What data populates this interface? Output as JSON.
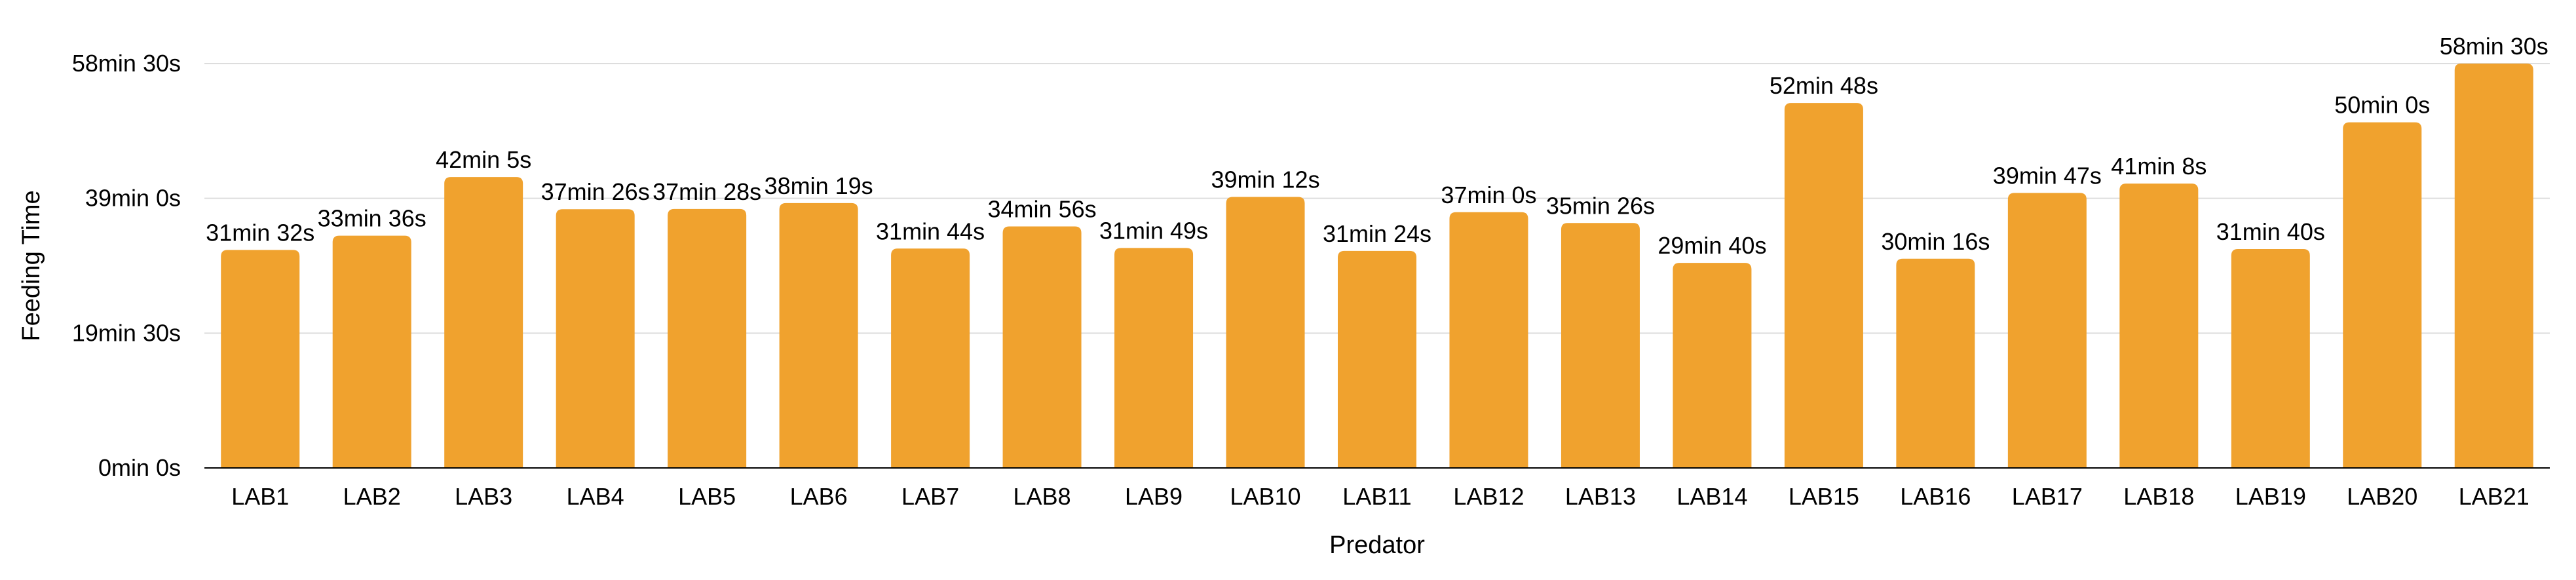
{
  "chart_data": {
    "type": "bar",
    "xlabel": "Predator",
    "ylabel": "Feeding Time",
    "categories": [
      "LAB1",
      "LAB2",
      "LAB3",
      "LAB4",
      "LAB5",
      "LAB6",
      "LAB7",
      "LAB8",
      "LAB9",
      "LAB10",
      "LAB11",
      "LAB12",
      "LAB13",
      "LAB14",
      "LAB15",
      "LAB16",
      "LAB17",
      "LAB18",
      "LAB19",
      "LAB20",
      "LAB21"
    ],
    "values_seconds": [
      1892,
      2016,
      2525,
      2246,
      2248,
      2299,
      1904,
      2096,
      1909,
      2352,
      1884,
      2220,
      2126,
      1780,
      3168,
      1816,
      2387,
      2468,
      1900,
      3000,
      3510
    ],
    "value_labels": [
      "31min 32s",
      "33min 36s",
      "42min 5s",
      "37min 26s",
      "37min 28s",
      "38min 19s",
      "31min 44s",
      "34min 56s",
      "31min 49s",
      "39min 12s",
      "31min 24s",
      "37min 0s",
      "35min 26s",
      "29min 40s",
      "52min 48s",
      "30min 16s",
      "39min 47s",
      "41min 8s",
      "31min 40s",
      "50min 0s",
      "58min 30s"
    ],
    "y_ticks_seconds": [
      0,
      1170,
      2340,
      3510
    ],
    "y_tick_labels": [
      "0min 0s",
      "19min 30s",
      "39min 0s",
      "58min 30s"
    ],
    "ylim_seconds": [
      0,
      3510
    ],
    "grid": true,
    "bar_color": "#F0A22E",
    "gridline_color": "#DDDDDD",
    "axis_color": "#000000"
  }
}
